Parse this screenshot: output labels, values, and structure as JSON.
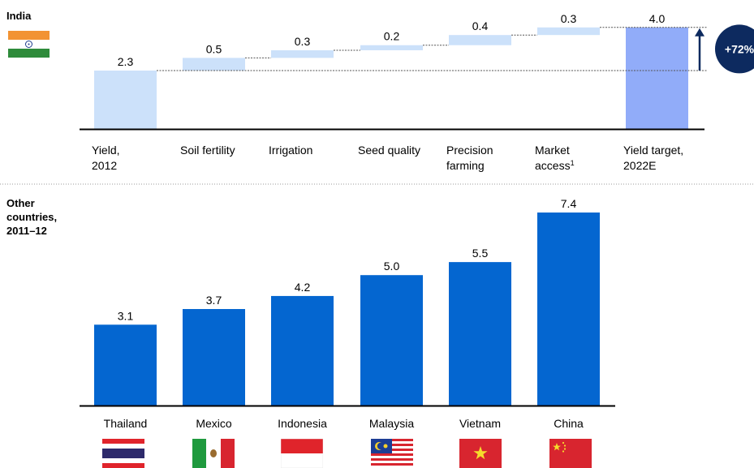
{
  "india_section": {
    "label": "India"
  },
  "other_section": {
    "label_line1": "Other",
    "label_line2": "countries,",
    "label_line3": "2011–12"
  },
  "chart_data": [
    {
      "type": "bar",
      "subtype": "waterfall",
      "title": "India",
      "categories": [
        [
          "Yield,",
          "2012"
        ],
        [
          "Soil fertility"
        ],
        [
          "Irrigation"
        ],
        [
          "Seed quality"
        ],
        [
          "Precision",
          "farming"
        ],
        [
          "Market",
          "access"
        ],
        [
          "Yield target,",
          "2022E"
        ]
      ],
      "category_superscripts": [
        "",
        "",
        "",
        "",
        "",
        "1",
        ""
      ],
      "values": [
        2.3,
        0.5,
        0.3,
        0.2,
        0.4,
        0.3,
        4.0
      ],
      "value_labels": [
        "2.3",
        "0.5",
        "0.3",
        "0.2",
        "0.4",
        "0.3",
        "4.0"
      ],
      "bar_kinds": [
        "total",
        "increment",
        "increment",
        "increment",
        "increment",
        "increment",
        "total"
      ],
      "annotation": "+72%",
      "colors": {
        "light": "#cce1fa",
        "target": "#91acf9",
        "annotation": "#0d2a5f"
      }
    },
    {
      "type": "bar",
      "title": "",
      "categories": [
        "Thailand",
        "Mexico",
        "Indonesia",
        "Malaysia",
        "Vietnam",
        "China"
      ],
      "values": [
        3.1,
        3.7,
        4.2,
        5.0,
        5.5,
        7.4
      ],
      "value_labels": [
        "3.1",
        "3.7",
        "4.2",
        "5.0",
        "5.5",
        "7.4"
      ],
      "colors": {
        "bar": "#0466d0"
      }
    }
  ]
}
